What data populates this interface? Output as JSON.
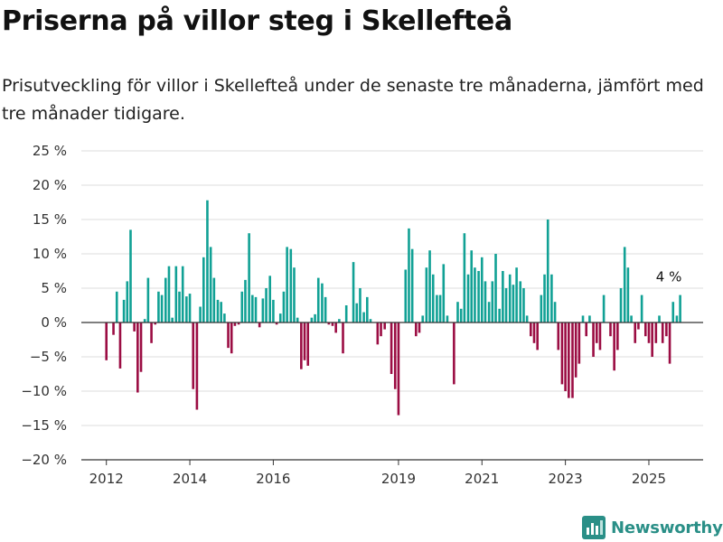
{
  "title": "Priserna på villor steg i Skellefteå",
  "subtitle": "Prisutveckling för villor i Skellefteå under de senaste tre månaderna, jämfört med tre månader tidigare.",
  "brand": {
    "name": "Newsworthy",
    "icon": "newsworthy-logo-icon",
    "color": "#2a8f87"
  },
  "colors": {
    "positive": "#11a195",
    "negative": "#9b0d43",
    "grid": "#dedede",
    "zero": "#333333"
  },
  "chart_data": {
    "type": "bar",
    "ylabel": "",
    "xlabel": "",
    "ylim": [
      -20,
      25
    ],
    "yticks": [
      25,
      20,
      15,
      10,
      5,
      0,
      -5,
      -10,
      -15,
      -20
    ],
    "ytick_labels": [
      "25 %",
      "20 %",
      "15 %",
      "10 %",
      "5 %",
      "0 %",
      "−5 %",
      "−10 %",
      "−15 %",
      "−20 %"
    ],
    "xticks": [
      {
        "label": "2012",
        "x": 2012.0
      },
      {
        "label": "2014",
        "x": 2014.0
      },
      {
        "label": "2016",
        "x": 2016.0
      },
      {
        "label": "2019",
        "x": 2019.0
      },
      {
        "label": "2021",
        "x": 2021.0
      },
      {
        "label": "2023",
        "x": 2023.0
      },
      {
        "label": "2025",
        "x": 2025.0
      }
    ],
    "xlim": [
      2011.4,
      2026.3
    ],
    "grid": true,
    "annotation": {
      "text": "4 %",
      "x": 2025.5,
      "value": 4
    },
    "bars": [
      {
        "x": 2012.0,
        "value": -5.5
      },
      {
        "x": 2012.17,
        "value": -1.8
      },
      {
        "x": 2012.25,
        "value": 4.5
      },
      {
        "x": 2012.33,
        "value": -6.7
      },
      {
        "x": 2012.42,
        "value": 3.3
      },
      {
        "x": 2012.5,
        "value": 6.0
      },
      {
        "x": 2012.58,
        "value": 13.5
      },
      {
        "x": 2012.67,
        "value": -1.3
      },
      {
        "x": 2012.75,
        "value": -10.2
      },
      {
        "x": 2012.83,
        "value": -7.2
      },
      {
        "x": 2012.92,
        "value": 0.5
      },
      {
        "x": 2013.0,
        "value": 6.5
      },
      {
        "x": 2013.08,
        "value": -3.0
      },
      {
        "x": 2013.17,
        "value": -0.3
      },
      {
        "x": 2013.25,
        "value": 4.5
      },
      {
        "x": 2013.33,
        "value": 4.0
      },
      {
        "x": 2013.42,
        "value": 6.5
      },
      {
        "x": 2013.5,
        "value": 8.2
      },
      {
        "x": 2013.58,
        "value": 0.7
      },
      {
        "x": 2013.67,
        "value": 8.2
      },
      {
        "x": 2013.75,
        "value": 4.5
      },
      {
        "x": 2013.83,
        "value": 8.2
      },
      {
        "x": 2013.92,
        "value": 3.8
      },
      {
        "x": 2014.0,
        "value": 4.2
      },
      {
        "x": 2014.08,
        "value": -9.7
      },
      {
        "x": 2014.17,
        "value": -12.7
      },
      {
        "x": 2014.25,
        "value": 2.3
      },
      {
        "x": 2014.33,
        "value": 9.5
      },
      {
        "x": 2014.42,
        "value": 17.8
      },
      {
        "x": 2014.5,
        "value": 11.0
      },
      {
        "x": 2014.58,
        "value": 6.5
      },
      {
        "x": 2014.67,
        "value": 3.3
      },
      {
        "x": 2014.75,
        "value": 3.0
      },
      {
        "x": 2014.83,
        "value": 1.3
      },
      {
        "x": 2014.92,
        "value": -3.7
      },
      {
        "x": 2015.0,
        "value": -4.5
      },
      {
        "x": 2015.08,
        "value": -0.5
      },
      {
        "x": 2015.17,
        "value": -0.3
      },
      {
        "x": 2015.25,
        "value": 4.5
      },
      {
        "x": 2015.33,
        "value": 6.2
      },
      {
        "x": 2015.42,
        "value": 13.0
      },
      {
        "x": 2015.5,
        "value": 4.0
      },
      {
        "x": 2015.58,
        "value": 3.7
      },
      {
        "x": 2015.67,
        "value": -0.7
      },
      {
        "x": 2015.75,
        "value": 3.5
      },
      {
        "x": 2015.83,
        "value": 5.0
      },
      {
        "x": 2015.92,
        "value": 6.8
      },
      {
        "x": 2016.0,
        "value": 3.3
      },
      {
        "x": 2016.08,
        "value": -0.3
      },
      {
        "x": 2016.17,
        "value": 1.3
      },
      {
        "x": 2016.25,
        "value": 4.5
      },
      {
        "x": 2016.33,
        "value": 11.0
      },
      {
        "x": 2016.42,
        "value": 10.7
      },
      {
        "x": 2016.5,
        "value": 8.0
      },
      {
        "x": 2016.58,
        "value": 0.7
      },
      {
        "x": 2016.67,
        "value": -6.8
      },
      {
        "x": 2016.75,
        "value": -5.5
      },
      {
        "x": 2016.83,
        "value": -6.3
      },
      {
        "x": 2016.92,
        "value": 0.7
      },
      {
        "x": 2017.0,
        "value": 1.2
      },
      {
        "x": 2017.08,
        "value": 6.5
      },
      {
        "x": 2017.17,
        "value": 5.7
      },
      {
        "x": 2017.25,
        "value": 3.7
      },
      {
        "x": 2017.33,
        "value": -0.3
      },
      {
        "x": 2017.42,
        "value": -0.5
      },
      {
        "x": 2017.5,
        "value": -1.5
      },
      {
        "x": 2017.58,
        "value": 0.5
      },
      {
        "x": 2017.67,
        "value": -4.5
      },
      {
        "x": 2017.75,
        "value": 2.5
      },
      {
        "x": 2017.92,
        "value": 8.8
      },
      {
        "x": 2018.0,
        "value": 2.8
      },
      {
        "x": 2018.08,
        "value": 5.0
      },
      {
        "x": 2018.17,
        "value": 1.5
      },
      {
        "x": 2018.25,
        "value": 3.7
      },
      {
        "x": 2018.33,
        "value": 0.5
      },
      {
        "x": 2018.5,
        "value": -3.2
      },
      {
        "x": 2018.58,
        "value": -2.0
      },
      {
        "x": 2018.67,
        "value": -1.0
      },
      {
        "x": 2018.83,
        "value": -7.5
      },
      {
        "x": 2018.92,
        "value": -9.7
      },
      {
        "x": 2019.0,
        "value": -13.5
      },
      {
        "x": 2019.17,
        "value": 7.7
      },
      {
        "x": 2019.25,
        "value": 13.7
      },
      {
        "x": 2019.33,
        "value": 10.7
      },
      {
        "x": 2019.42,
        "value": -2.0
      },
      {
        "x": 2019.5,
        "value": -1.5
      },
      {
        "x": 2019.58,
        "value": 1.0
      },
      {
        "x": 2019.67,
        "value": 8.0
      },
      {
        "x": 2019.75,
        "value": 10.5
      },
      {
        "x": 2019.83,
        "value": 7.0
      },
      {
        "x": 2019.92,
        "value": 4.0
      },
      {
        "x": 2020.0,
        "value": 4.0
      },
      {
        "x": 2020.08,
        "value": 8.5
      },
      {
        "x": 2020.17,
        "value": 1.0
      },
      {
        "x": 2020.33,
        "value": -9.0
      },
      {
        "x": 2020.42,
        "value": 3.0
      },
      {
        "x": 2020.5,
        "value": 2.0
      },
      {
        "x": 2020.58,
        "value": 13.0
      },
      {
        "x": 2020.67,
        "value": 7.0
      },
      {
        "x": 2020.75,
        "value": 10.5
      },
      {
        "x": 2020.83,
        "value": 8.0
      },
      {
        "x": 2020.92,
        "value": 7.5
      },
      {
        "x": 2021.0,
        "value": 9.5
      },
      {
        "x": 2021.08,
        "value": 6.0
      },
      {
        "x": 2021.17,
        "value": 3.0
      },
      {
        "x": 2021.25,
        "value": 6.0
      },
      {
        "x": 2021.33,
        "value": 10.0
      },
      {
        "x": 2021.42,
        "value": 2.0
      },
      {
        "x": 2021.5,
        "value": 7.5
      },
      {
        "x": 2021.58,
        "value": 5.0
      },
      {
        "x": 2021.67,
        "value": 7.0
      },
      {
        "x": 2021.75,
        "value": 5.5
      },
      {
        "x": 2021.83,
        "value": 8.0
      },
      {
        "x": 2021.92,
        "value": 6.0
      },
      {
        "x": 2022.0,
        "value": 5.0
      },
      {
        "x": 2022.08,
        "value": 1.0
      },
      {
        "x": 2022.17,
        "value": -2.0
      },
      {
        "x": 2022.25,
        "value": -3.0
      },
      {
        "x": 2022.33,
        "value": -4.0
      },
      {
        "x": 2022.42,
        "value": 4.0
      },
      {
        "x": 2022.5,
        "value": 7.0
      },
      {
        "x": 2022.58,
        "value": 15.0
      },
      {
        "x": 2022.67,
        "value": 7.0
      },
      {
        "x": 2022.75,
        "value": 3.0
      },
      {
        "x": 2022.83,
        "value": -4.0
      },
      {
        "x": 2022.92,
        "value": -9.0
      },
      {
        "x": 2023.0,
        "value": -10.0
      },
      {
        "x": 2023.08,
        "value": -11.0
      },
      {
        "x": 2023.17,
        "value": -11.0
      },
      {
        "x": 2023.25,
        "value": -8.0
      },
      {
        "x": 2023.33,
        "value": -6.0
      },
      {
        "x": 2023.42,
        "value": 1.0
      },
      {
        "x": 2023.5,
        "value": -2.0
      },
      {
        "x": 2023.58,
        "value": 1.0
      },
      {
        "x": 2023.67,
        "value": -5.0
      },
      {
        "x": 2023.75,
        "value": -3.0
      },
      {
        "x": 2023.83,
        "value": -4.0
      },
      {
        "x": 2023.92,
        "value": 4.0
      },
      {
        "x": 2024.08,
        "value": -2.0
      },
      {
        "x": 2024.17,
        "value": -7.0
      },
      {
        "x": 2024.25,
        "value": -4.0
      },
      {
        "x": 2024.33,
        "value": 5.0
      },
      {
        "x": 2024.42,
        "value": 11.0
      },
      {
        "x": 2024.5,
        "value": 8.0
      },
      {
        "x": 2024.58,
        "value": 1.0
      },
      {
        "x": 2024.67,
        "value": -3.0
      },
      {
        "x": 2024.75,
        "value": -1.0
      },
      {
        "x": 2024.83,
        "value": 4.0
      },
      {
        "x": 2024.92,
        "value": -2.0
      },
      {
        "x": 2025.0,
        "value": -3.0
      },
      {
        "x": 2025.08,
        "value": -5.0
      },
      {
        "x": 2025.17,
        "value": -3.0
      },
      {
        "x": 2025.25,
        "value": 1.0
      },
      {
        "x": 2025.33,
        "value": -3.0
      },
      {
        "x": 2025.42,
        "value": -2.0
      },
      {
        "x": 2025.5,
        "value": -6.0
      },
      {
        "x": 2025.58,
        "value": 3.0
      },
      {
        "x": 2025.67,
        "value": 1.0
      },
      {
        "x": 2025.75,
        "value": 4.0
      }
    ]
  }
}
